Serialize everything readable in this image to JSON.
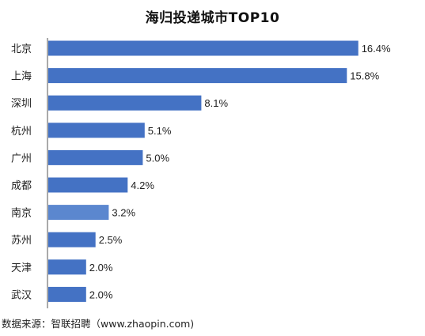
{
  "colors": {
    "bar": "#4472c4",
    "bar_highlight": "#5b87cf"
  },
  "chart_data": {
    "type": "bar",
    "orientation": "horizontal",
    "title": "海归投递城市TOP10",
    "categories": [
      "北京",
      "上海",
      "深圳",
      "杭州",
      "广州",
      "成都",
      "南京",
      "苏州",
      "天津",
      "武汉"
    ],
    "values": [
      16.4,
      15.8,
      8.1,
      5.1,
      5.0,
      4.2,
      3.2,
      2.5,
      2.0,
      2.0
    ],
    "value_labels": [
      "16.4%",
      "15.8%",
      "8.1%",
      "5.1%",
      "5.0%",
      "4.2%",
      "3.2%",
      "2.5%",
      "2.0%",
      "2.0%"
    ],
    "xlim": [
      0,
      17
    ],
    "grid": false,
    "legend": "none"
  },
  "source": "数据来源：智联招聘（www.zhaopin.com)"
}
